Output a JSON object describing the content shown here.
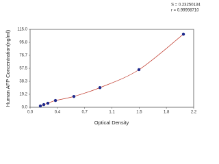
{
  "chart_data": {
    "type": "scatter",
    "annotations": [
      "S = 0.23250134",
      "r = 0.99998710"
    ],
    "x_label": "Optical Density",
    "y_label": "Human AFP Concentration(ng/ml)",
    "series": [
      {
        "color": "#1f2a8c",
        "line_color": "#c0392b",
        "x": [
          0.138,
          0.184,
          0.239,
          0.341,
          0.589,
          0.939,
          1.464,
          2.062
        ],
        "values": [
          2,
          4,
          6,
          10,
          16,
          29,
          55.5,
          108
        ]
      }
    ],
    "xlim": [
      0,
      2.2
    ],
    "xticks": [
      {
        "value": 0,
        "label": "0.0"
      },
      {
        "value": 0.367,
        "label": "0.4"
      },
      {
        "value": 0.733,
        "label": "0.7"
      },
      1.1,
      {
        "value": 1.467,
        "label": "1.5"
      },
      {
        "value": 1.833,
        "label": "1.8"
      },
      2.2
    ],
    "ylim": [
      0,
      115
    ],
    "yticks": [
      {
        "value": 0,
        "label": "0.0"
      },
      19.2,
      38.3,
      57.5,
      76.7,
      95.8,
      {
        "value": 115,
        "label": "115.0"
      }
    ],
    "grid": false
  }
}
